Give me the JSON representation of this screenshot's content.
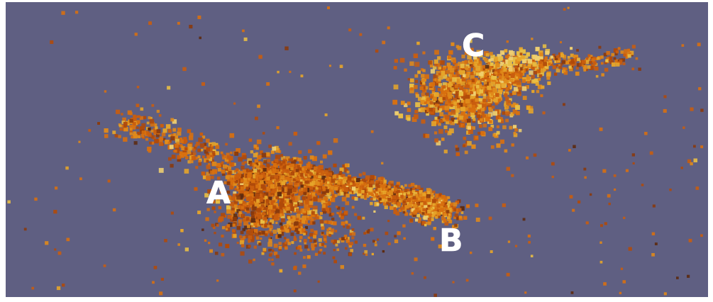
{
  "scene": {
    "background_color": "#5f5f82",
    "particle_palette": [
      "#5c2a10",
      "#8a3a0c",
      "#b04a0a",
      "#c95d0e",
      "#d8700f",
      "#e08a1a",
      "#e6a52a",
      "#e9bf45",
      "#f0d070"
    ],
    "clusters": [
      {
        "label": "A",
        "primary_color": "#c95d0e"
      },
      {
        "label": "B",
        "primary_color": "#d8700f"
      },
      {
        "label": "C",
        "primary_color": "#e6a52a"
      }
    ]
  }
}
